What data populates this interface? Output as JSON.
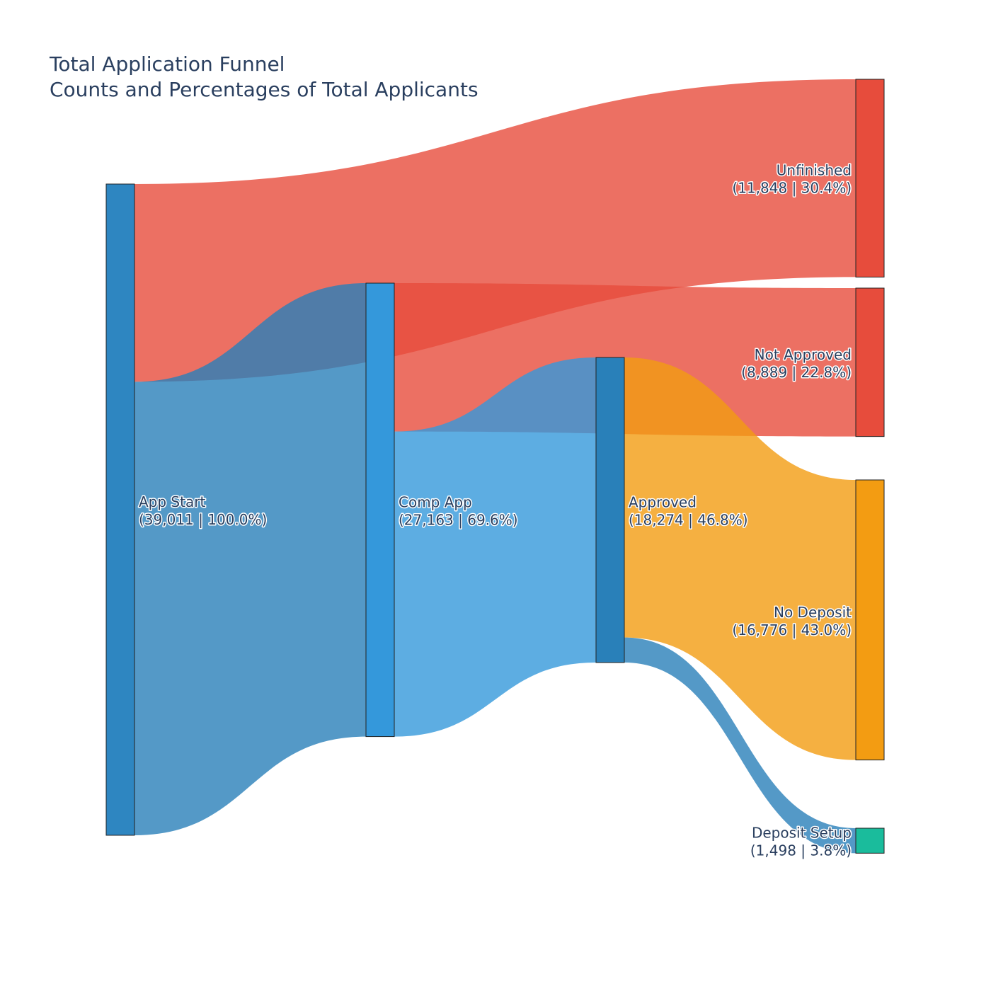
{
  "chart_data": {
    "type": "sankey",
    "title": "Total Application Funnel",
    "subtitle": "Counts and Percentages of Total Applicants",
    "nodes": [
      {
        "id": "app_start",
        "label": "App Start",
        "value": 39011,
        "percent": "100.0%",
        "detail": "(39,011 | 100.0%)",
        "color": "#2e86c1",
        "column": 0
      },
      {
        "id": "comp_app",
        "label": "Comp App",
        "value": 27163,
        "percent": "69.6%",
        "detail": "(27,163 | 69.6%)",
        "color": "#3498db",
        "column": 1
      },
      {
        "id": "approved",
        "label": "Approved",
        "value": 18274,
        "percent": "46.8%",
        "detail": "(18,274 | 46.8%)",
        "color": "#2980b9",
        "column": 2
      },
      {
        "id": "unfinished",
        "label": "Unfinished",
        "value": 11848,
        "percent": "30.4%",
        "detail": "(11,848 | 30.4%)",
        "color": "#e74c3c",
        "column": 3
      },
      {
        "id": "not_approved",
        "label": "Not Approved",
        "value": 8889,
        "percent": "22.8%",
        "detail": "(8,889 | 22.8%)",
        "color": "#e74c3c",
        "column": 3
      },
      {
        "id": "no_deposit",
        "label": "No Deposit",
        "value": 16776,
        "percent": "43.0%",
        "detail": "(16,776 | 43.0%)",
        "color": "#f39c12",
        "column": 3
      },
      {
        "id": "deposit_setup",
        "label": "Deposit Setup",
        "value": 1498,
        "percent": "3.8%",
        "detail": "(1,498 | 3.8%)",
        "color": "#1abc9c",
        "column": 3
      }
    ],
    "links": [
      {
        "source": "app_start",
        "target": "unfinished",
        "value": 11848,
        "color": "#e74c3c"
      },
      {
        "source": "app_start",
        "target": "comp_app",
        "value": 27163,
        "color": "#2980b9"
      },
      {
        "source": "comp_app",
        "target": "not_approved",
        "value": 8889,
        "color": "#e74c3c"
      },
      {
        "source": "comp_app",
        "target": "approved",
        "value": 18274,
        "color": "#3498db"
      },
      {
        "source": "approved",
        "target": "no_deposit",
        "value": 16776,
        "color": "#f39c12"
      },
      {
        "source": "approved",
        "target": "deposit_setup",
        "value": 1498,
        "color": "#2980b9"
      }
    ]
  }
}
